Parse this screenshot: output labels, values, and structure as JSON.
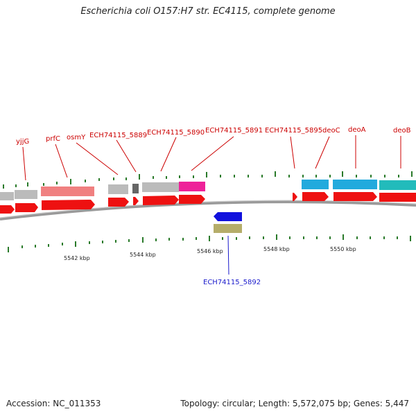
{
  "title": "Escherichia coli O157:H7 str. EC4115, complete genome",
  "accession": "Accession: NC_011353",
  "summary": "Topology: circular; Length: 5,572,075 bp; Genes: 5,447",
  "colors": {
    "cds": "#ee1111",
    "backbone": "#777777",
    "tick": "#2a7a2a",
    "gray": "#bbbbbb",
    "darkgray": "#666666",
    "salmon": "#f08080",
    "magenta": "#ee2299",
    "skyblue": "#22aadd",
    "teal": "#22bbbb",
    "blue": "#1111dd",
    "olive": "#b5ad6a"
  },
  "scale_labels": [
    "5542 kbp",
    "5544 kbp",
    "5546 kbp",
    "5548 kbp",
    "5550 kbp"
  ],
  "gene_labels": [
    {
      "name": "yjjG",
      "color": "red"
    },
    {
      "name": "prfC",
      "color": "red"
    },
    {
      "name": "osmY",
      "color": "red"
    },
    {
      "name": "ECH74115_5889",
      "color": "red"
    },
    {
      "name": "ECH74115_5890",
      "color": "red"
    },
    {
      "name": "ECH74115_5891",
      "color": "red"
    },
    {
      "name": "ECH74115_5895",
      "color": "red"
    },
    {
      "name": "deoC",
      "color": "red"
    },
    {
      "name": "deoA",
      "color": "red"
    },
    {
      "name": "deoB",
      "color": "red"
    },
    {
      "name": "ECH74115_5892",
      "color": "blue"
    }
  ]
}
